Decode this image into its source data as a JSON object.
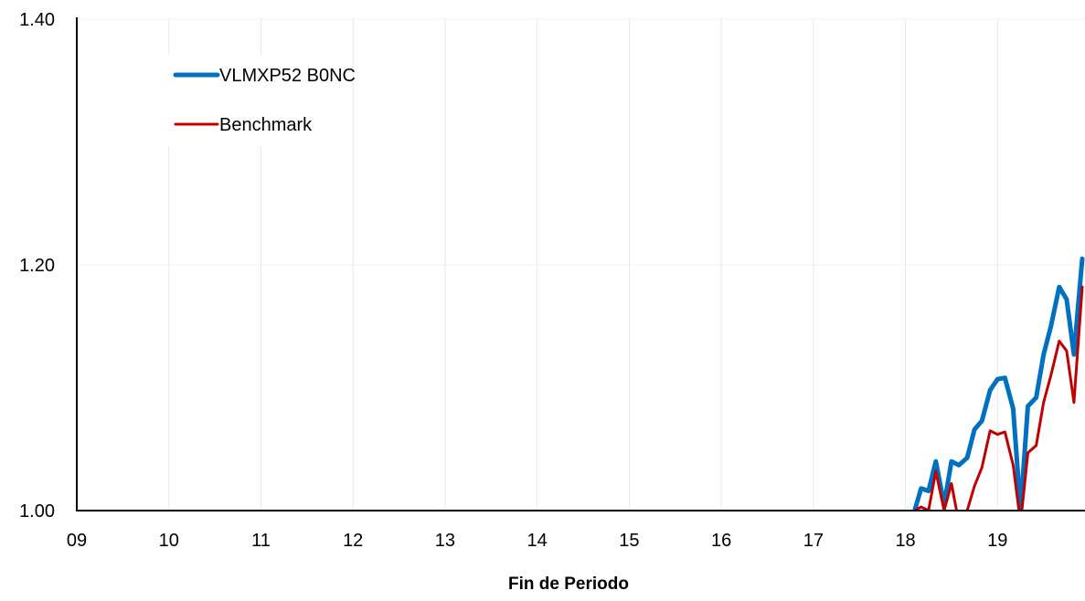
{
  "chart_data": {
    "type": "line",
    "title": "",
    "xlabel": "Fin de Periodo",
    "ylabel": "",
    "x_ticks": [
      "09",
      "10",
      "11",
      "12",
      "13",
      "14",
      "15",
      "16",
      "17",
      "18",
      "19"
    ],
    "y_ticks": [
      "1.00",
      "1.20",
      "1.40"
    ],
    "ylim": [
      1.0,
      1.4
    ],
    "xlim": [
      2009.0,
      2019.95
    ],
    "grid": "vertical",
    "legend_position": "top-left",
    "series": [
      {
        "name": "VLMXP52 B0NC",
        "color": "#0070C0",
        "x": [
          2018.1,
          2018.17,
          2018.25,
          2018.33,
          2018.42,
          2018.5,
          2018.58,
          2018.67,
          2018.75,
          2018.83,
          2018.92,
          2019.0,
          2019.08,
          2019.17,
          2019.25,
          2019.33,
          2019.42,
          2019.5,
          2019.58,
          2019.67,
          2019.75,
          2019.83,
          2019.92
        ],
        "values": [
          1.0,
          1.018,
          1.016,
          1.04,
          1.005,
          1.04,
          1.037,
          1.043,
          1.066,
          1.073,
          1.098,
          1.107,
          1.108,
          1.083,
          1.0,
          1.085,
          1.092,
          1.127,
          1.15,
          1.182,
          1.172,
          1.127,
          1.205
        ]
      },
      {
        "name": "Benchmark",
        "color": "#C00000",
        "x": [
          2018.1,
          2018.17,
          2018.25,
          2018.33,
          2018.42,
          2018.5,
          2018.58,
          2018.67,
          2018.75,
          2018.83,
          2018.92,
          2019.0,
          2019.08,
          2019.17,
          2019.25,
          2019.33,
          2019.42,
          2019.5,
          2019.58,
          2019.67,
          2019.75,
          2019.83,
          2019.92
        ],
        "values": [
          1.0,
          1.003,
          1.0,
          1.032,
          1.0,
          1.022,
          0.99,
          1.0,
          1.02,
          1.035,
          1.065,
          1.062,
          1.064,
          1.037,
          0.99,
          1.047,
          1.053,
          1.088,
          1.11,
          1.138,
          1.13,
          1.088,
          1.182
        ]
      }
    ]
  }
}
